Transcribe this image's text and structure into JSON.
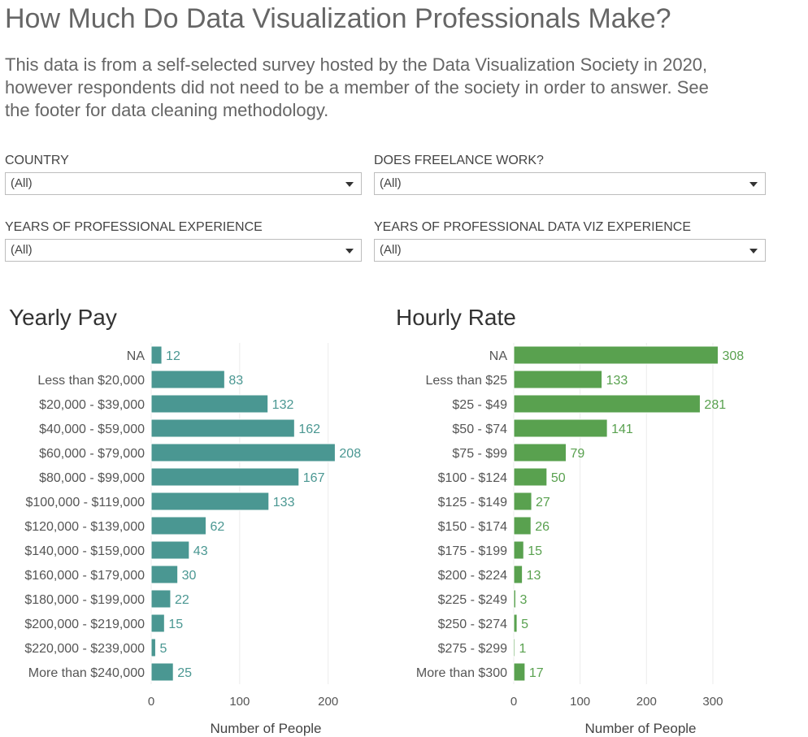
{
  "page": {
    "title": "How Much Do Data Visualization Professionals Make?",
    "description": "This data is from a self-selected survey hosted by the Data Visualization Society in 2020, however respondents did not need to be a member of the society in order to answer. See the footer for data cleaning methodology."
  },
  "filters": [
    {
      "label": "COUNTRY",
      "value": "(All)"
    },
    {
      "label": "DOES FREELANCE WORK?",
      "value": "(All)"
    },
    {
      "label": "YEARS OF PROFESSIONAL EXPERIENCE",
      "value": "(All)"
    },
    {
      "label": "YEARS OF PROFESSIONAL DATA VIZ EXPERIENCE",
      "value": "(All)"
    }
  ],
  "chart_data": [
    {
      "type": "bar",
      "orientation": "horizontal",
      "title": "Yearly Pay",
      "xlabel": "Number of People",
      "ylabel": "",
      "xlim": [
        0,
        260
      ],
      "xticks": [
        0,
        100,
        200
      ],
      "grid": true,
      "color": "#4a9792",
      "categories": [
        "NA",
        "Less than $20,000",
        "$20,000 - $39,000",
        "$40,000 - $59,000",
        "$60,000 - $79,000",
        "$80,000 - $99,000",
        "$100,000 - $119,000",
        "$120,000 - $139,000",
        "$140,000 - $159,000",
        "$160,000 - $179,000",
        "$180,000 - $199,000",
        "$200,000 - $219,000",
        "$220,000 - $239,000",
        "More than $240,000"
      ],
      "values": [
        12,
        83,
        132,
        162,
        208,
        167,
        133,
        62,
        43,
        30,
        22,
        15,
        5,
        25
      ]
    },
    {
      "type": "bar",
      "orientation": "horizontal",
      "title": "Hourly Rate",
      "xlabel": "Number of People",
      "ylabel": "",
      "xlim": [
        0,
        375
      ],
      "xticks": [
        0,
        100,
        200,
        300
      ],
      "grid": true,
      "color": "#59a14f",
      "categories": [
        "NA",
        "Less than $25",
        "$25 - $49",
        "$50 - $74",
        "$75 - $99",
        "$100 - $124",
        "$125 - $149",
        "$150 - $174",
        "$175 - $199",
        "$200 - $224",
        "$225 - $249",
        "$250 - $274",
        "$275 - $299",
        "More than $300"
      ],
      "values": [
        308,
        133,
        281,
        141,
        79,
        50,
        27,
        26,
        15,
        13,
        3,
        5,
        1,
        17
      ]
    }
  ]
}
